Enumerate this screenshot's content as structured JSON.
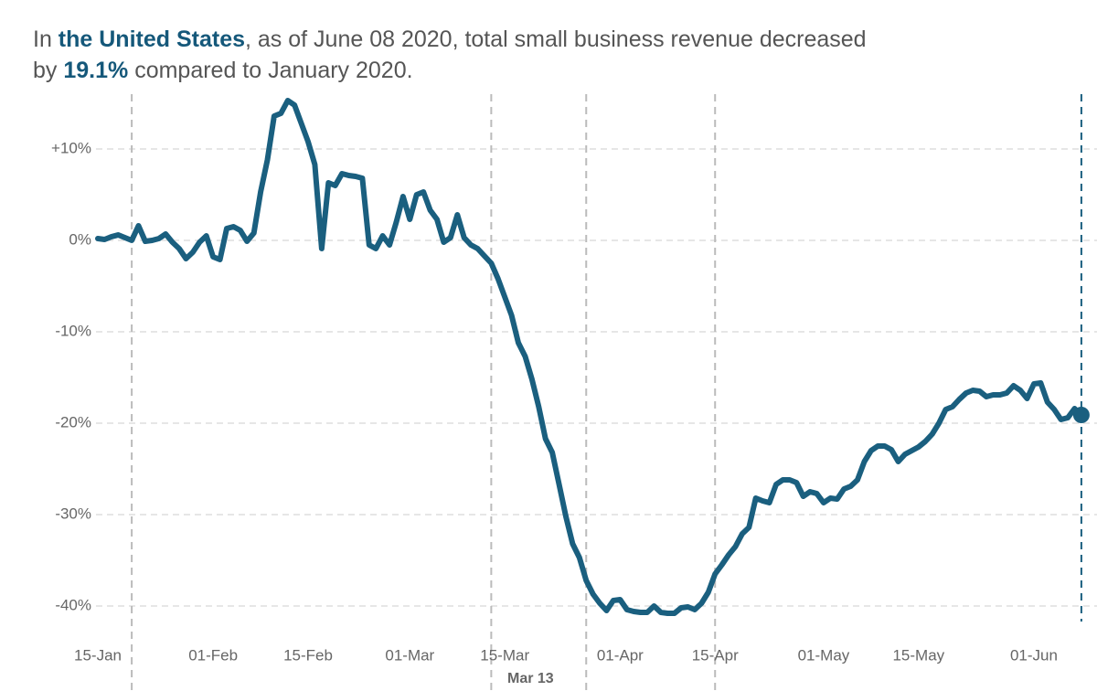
{
  "chart_data": {
    "type": "line",
    "title_lines": [
      [
        {
          "text": "In "
        },
        {
          "text": "the United States",
          "bold": true
        },
        {
          "text": ", as of June 08 2020, total small business revenue decreased"
        }
      ],
      [
        {
          "text": "by "
        },
        {
          "text": "19.1%",
          "bold": true
        },
        {
          "text": " compared to January 2020."
        }
      ]
    ],
    "emphasis_color": "#15587a",
    "x": [
      "15-Jan",
      "16-Jan",
      "17-Jan",
      "18-Jan",
      "19-Jan",
      "20-Jan",
      "21-Jan",
      "22-Jan",
      "23-Jan",
      "24-Jan",
      "25-Jan",
      "26-Jan",
      "27-Jan",
      "28-Jan",
      "29-Jan",
      "30-Jan",
      "31-Jan",
      "01-Feb",
      "02-Feb",
      "03-Feb",
      "04-Feb",
      "05-Feb",
      "06-Feb",
      "07-Feb",
      "08-Feb",
      "09-Feb",
      "10-Feb",
      "11-Feb",
      "12-Feb",
      "13-Feb",
      "14-Feb",
      "15-Feb",
      "16-Feb",
      "17-Feb",
      "18-Feb",
      "19-Feb",
      "20-Feb",
      "21-Feb",
      "22-Feb",
      "23-Feb",
      "24-Feb",
      "25-Feb",
      "26-Feb",
      "27-Feb",
      "28-Feb",
      "29-Feb",
      "01-Mar",
      "02-Mar",
      "03-Mar",
      "04-Mar",
      "05-Mar",
      "06-Mar",
      "07-Mar",
      "08-Mar",
      "09-Mar",
      "10-Mar",
      "11-Mar",
      "12-Mar",
      "13-Mar",
      "14-Mar",
      "15-Mar",
      "16-Mar",
      "17-Mar",
      "18-Mar",
      "19-Mar",
      "20-Mar",
      "21-Mar",
      "22-Mar",
      "23-Mar",
      "24-Mar",
      "25-Mar",
      "26-Mar",
      "27-Mar",
      "28-Mar",
      "29-Mar",
      "30-Mar",
      "31-Mar",
      "01-Apr",
      "02-Apr",
      "03-Apr",
      "04-Apr",
      "05-Apr",
      "06-Apr",
      "07-Apr",
      "08-Apr",
      "09-Apr",
      "10-Apr",
      "11-Apr",
      "12-Apr",
      "13-Apr",
      "14-Apr",
      "15-Apr",
      "16-Apr",
      "17-Apr",
      "18-Apr",
      "19-Apr",
      "20-Apr",
      "21-Apr",
      "22-Apr",
      "23-Apr",
      "24-Apr",
      "25-Apr",
      "26-Apr",
      "27-Apr",
      "28-Apr",
      "29-Apr",
      "30-Apr",
      "01-May",
      "02-May",
      "03-May",
      "04-May",
      "05-May",
      "06-May",
      "07-May",
      "08-May",
      "09-May",
      "10-May",
      "11-May",
      "12-May",
      "13-May",
      "14-May",
      "15-May",
      "16-May",
      "17-May",
      "18-May",
      "19-May",
      "20-May",
      "21-May",
      "22-May",
      "23-May",
      "24-May",
      "25-May",
      "26-May",
      "27-May",
      "28-May",
      "29-May",
      "30-May",
      "31-May",
      "01-Jun",
      "02-Jun",
      "03-Jun",
      "04-Jun",
      "05-Jun",
      "06-Jun",
      "07-Jun",
      "08-Jun"
    ],
    "series": [
      {
        "color": "#1a5f7f",
        "values": [
          0.2,
          0.1,
          0.4,
          0.6,
          0.3,
          0,
          1.6,
          -0.1,
          0,
          0.2,
          0.7,
          -0.2,
          -0.9,
          -2.0,
          -1.3,
          -0.2,
          0.5,
          -1.8,
          -2.1,
          1.3,
          1.5,
          1.1,
          -0.1,
          0.8,
          5.3,
          8.8,
          13.6,
          13.9,
          15.3,
          14.8,
          12.8,
          10.8,
          8.3,
          -0.9,
          6.3,
          6.0,
          7.3,
          7.1,
          7.0,
          6.8,
          -0.5,
          -0.9,
          0.5,
          -0.5,
          2.0,
          4.8,
          2.3,
          5.0,
          5.3,
          3.3,
          2.3,
          -0.2,
          0.3,
          2.8,
          0.3,
          -0.5,
          -0.9,
          -1.7,
          -2.5,
          -4.2,
          -6.2,
          -8.2,
          -11.2,
          -12.7,
          -15.2,
          -18.2,
          -21.7,
          -23.2,
          -26.7,
          -30.2,
          -33.2,
          -34.7,
          -37.2,
          -38.7,
          -39.7,
          -40.5,
          -39.4,
          -39.3,
          -40.4,
          -40.6,
          -40.7,
          -40.7,
          -40.0,
          -40.7,
          -40.8,
          -40.8,
          -40.2,
          -40.1,
          -40.4,
          -39.7,
          -38.5,
          -36.5,
          -35.5,
          -34.4,
          -33.5,
          -32.1,
          -31.4,
          -28.2,
          -28.5,
          -28.7,
          -26.7,
          -26.2,
          -26.2,
          -26.5,
          -28.0,
          -27.5,
          -27.7,
          -28.7,
          -28.2,
          -28.3,
          -27.2,
          -26.9,
          -26.2,
          -24.2,
          -23.0,
          -22.5,
          -22.5,
          -22.9,
          -24.2,
          -23.4,
          -23.0,
          -22.6,
          -22.0,
          -21.2,
          -20.0,
          -18.5,
          -18.2,
          -17.4,
          -16.7,
          -16.4,
          -16.5,
          -17.1,
          -16.9,
          -16.9,
          -16.7,
          -15.9,
          -16.4,
          -17.3,
          -15.7,
          -15.6,
          -17.7,
          -18.5,
          -19.6,
          -19.4,
          -18.4,
          -19.1
        ]
      }
    ],
    "xticks": [
      "15-Jan",
      "01-Feb",
      "15-Feb",
      "01-Mar",
      "15-Mar",
      "01-Apr",
      "15-Apr",
      "01-May",
      "15-May",
      "01-Jun"
    ],
    "ylim": [
      -47,
      16
    ],
    "yticks": [
      {
        "value": 10,
        "label": "+10%"
      },
      {
        "value": 0,
        "label": "0%"
      },
      {
        "value": -10,
        "label": "-10%"
      },
      {
        "value": -20,
        "label": "-20%"
      },
      {
        "value": -30,
        "label": "-30%"
      },
      {
        "value": -40,
        "label": "-40%"
      }
    ],
    "grid": true,
    "vlines": [
      "20-Jan",
      "13-Mar",
      "27-Mar",
      "15-Apr",
      "08-Jun"
    ],
    "annotations": [
      {
        "x": "13-Mar",
        "label": "Mar 13"
      }
    ],
    "end_marker": true
  }
}
